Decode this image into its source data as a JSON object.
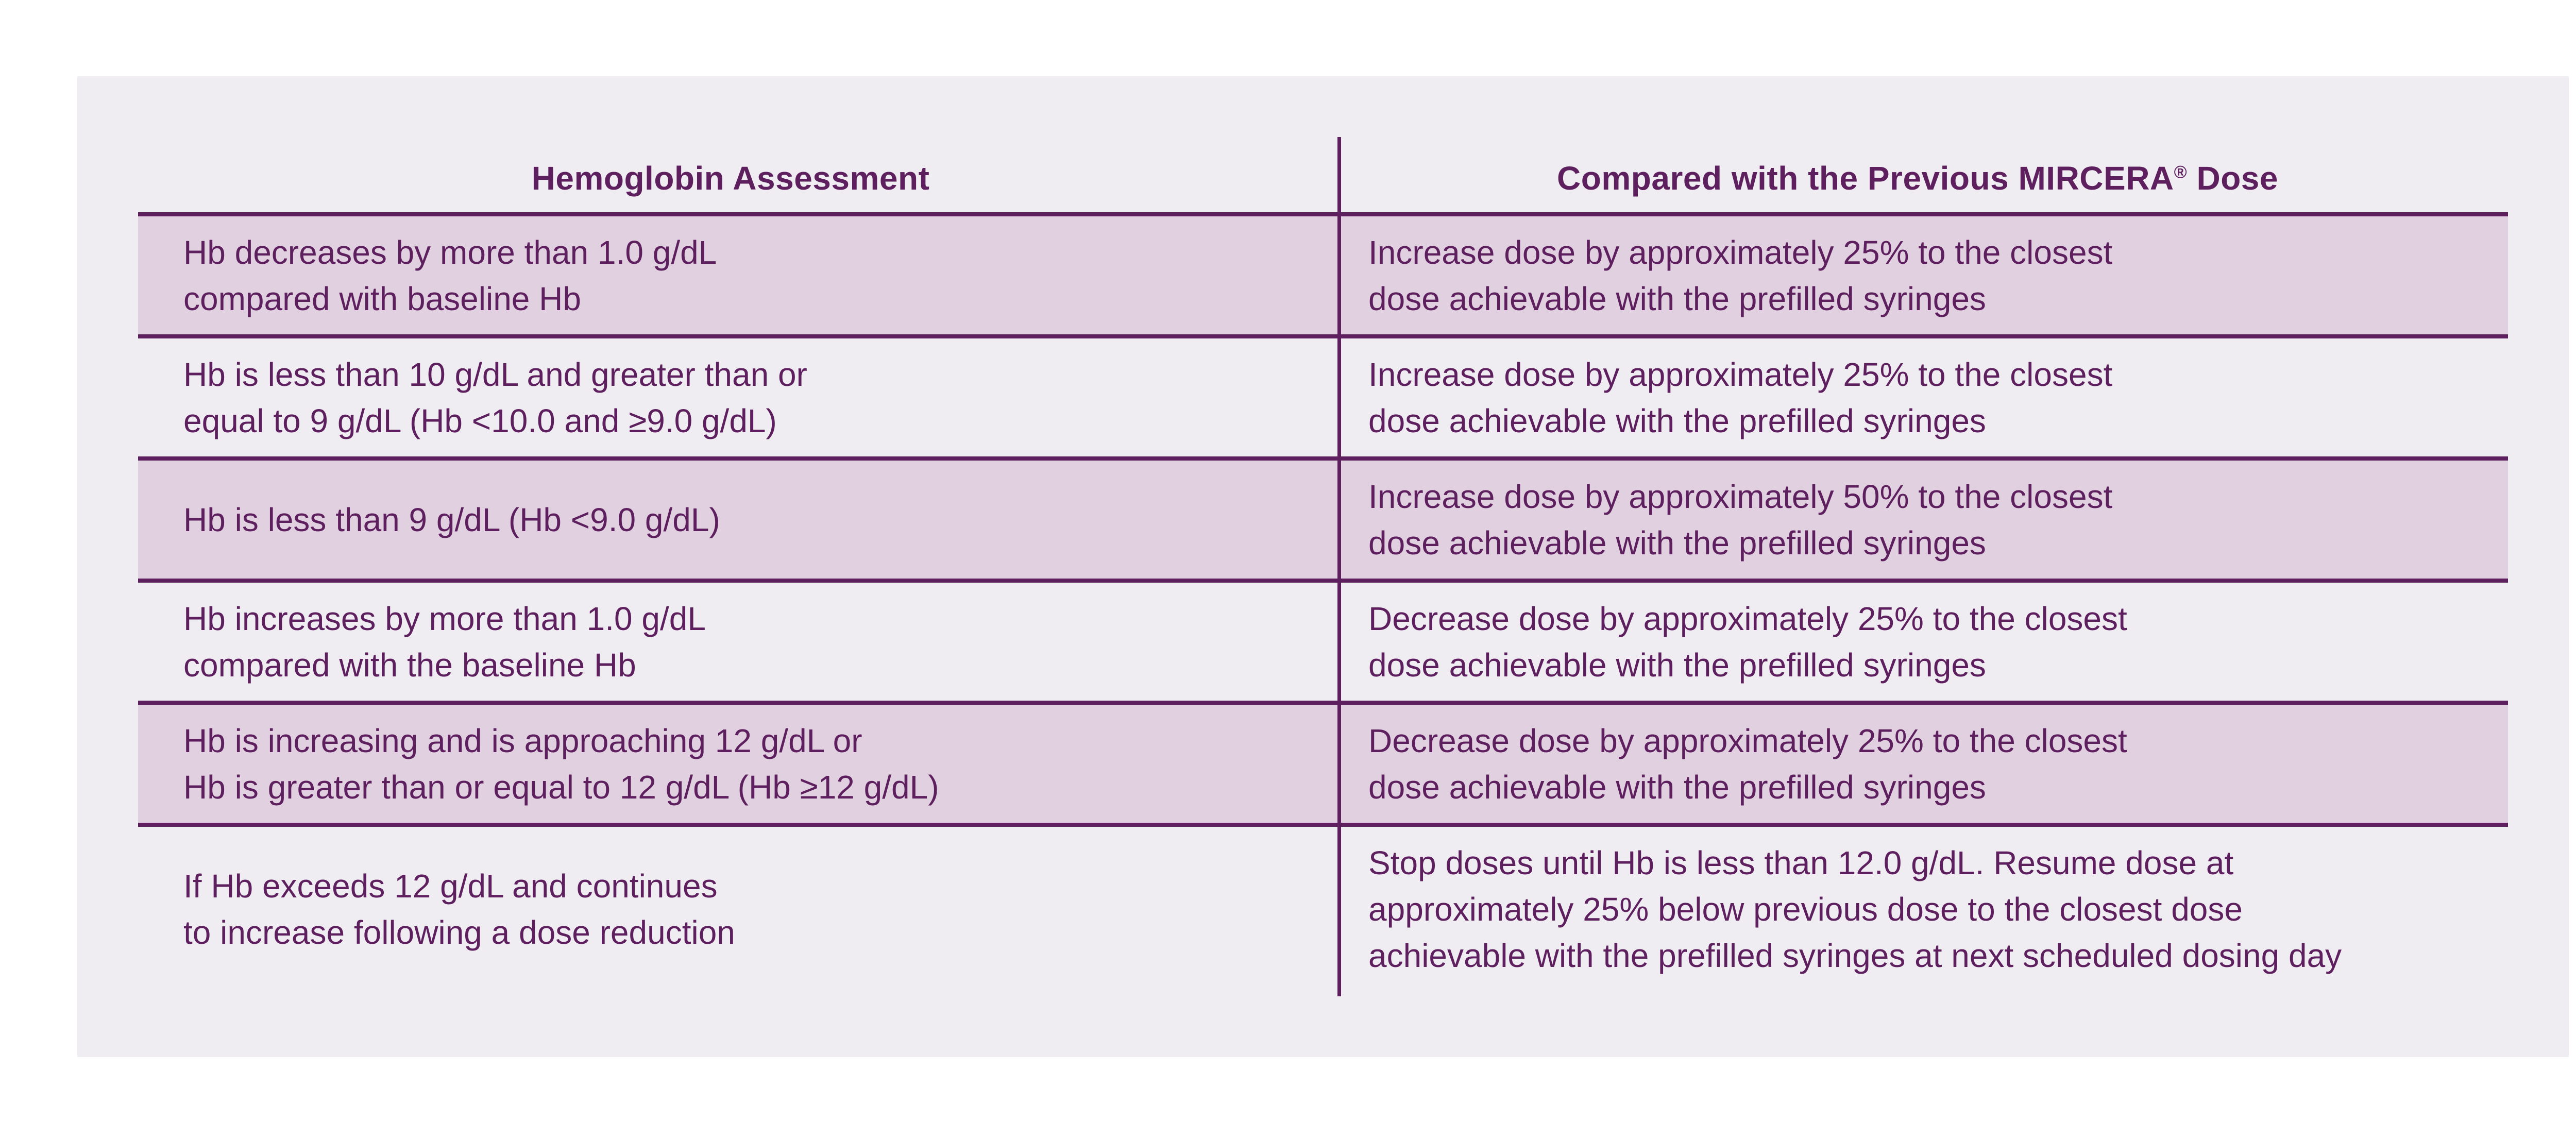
{
  "table": {
    "headers": {
      "left": "Hemoglobin Assessment",
      "right": "Compared with the Previous MIRCERA",
      "right_mark": "®",
      "right_suffix": " Dose"
    },
    "rows": [
      {
        "shaded": true,
        "left": [
          "Hb decreases by more than 1.0 g/dL",
          "compared with baseline Hb"
        ],
        "right": [
          "Increase dose by approximately 25% to the closest",
          "dose achievable with the prefilled syringes"
        ]
      },
      {
        "shaded": false,
        "left": [
          "Hb is less than 10 g/dL and greater than or",
          "equal to 9 g/dL (Hb <10.0 and  ≥9.0 g/dL)"
        ],
        "right": [
          "Increase dose by approximately 25% to the closest",
          "dose achievable with the prefilled syringes"
        ]
      },
      {
        "shaded": true,
        "left": [
          "Hb is less than 9 g/dL (Hb <9.0 g/dL)"
        ],
        "right": [
          "Increase dose by approximately 50% to the closest",
          "dose achievable with the prefilled syringes"
        ]
      },
      {
        "shaded": false,
        "left": [
          "Hb increases by more than 1.0 g/dL",
          "compared with the baseline Hb"
        ],
        "right": [
          "Decrease dose by approximately 25% to the closest",
          "dose achievable with the prefilled syringes"
        ]
      },
      {
        "shaded": true,
        "left": [
          "Hb is increasing and is approaching 12 g/dL or",
          "Hb is greater than or equal to 12 g/dL (Hb ≥12 g/dL)"
        ],
        "right": [
          "Decrease dose by approximately 25% to the closest",
          "dose achievable with the prefilled syringes"
        ]
      },
      {
        "shaded": false,
        "left": [
          "If Hb exceeds 12 g/dL and continues",
          "to increase following a dose reduction"
        ],
        "right": [
          "Stop doses until Hb is less than 12.0 g/dL. Resume dose at",
          "approximately 25% below previous dose to the closest dose",
          "achievable with the prefilled syringes at next scheduled dosing day"
        ]
      }
    ]
  }
}
